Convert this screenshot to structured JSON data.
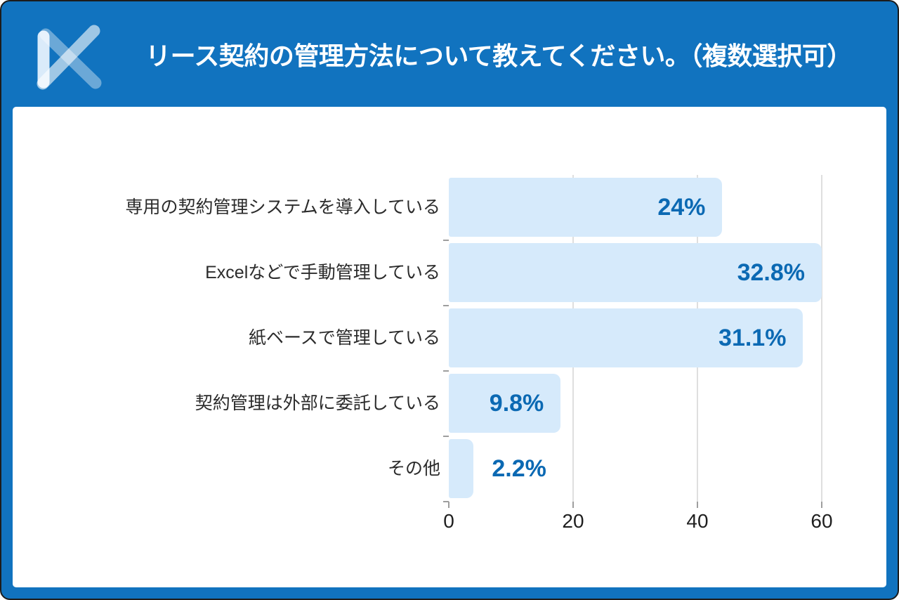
{
  "header": {
    "title": "リース契約の管理方法について教えてください。（複数選択可）",
    "logo": "brand-k-mark",
    "bg_color": "#1173BF",
    "title_color": "#FFFFFF"
  },
  "chart_data": {
    "type": "bar",
    "orientation": "horizontal",
    "title": "リース契約の管理方法について教えてください。（複数選択可）",
    "categories": [
      "専用の契約管理システムを導入している",
      "Excelなどで手動管理している",
      "紙ベースで管理している",
      "契約管理は外部に委託している",
      "その他"
    ],
    "values": [
      44,
      60,
      57,
      18,
      4
    ],
    "value_labels": [
      "24%",
      "32.8%",
      "31.1%",
      "9.8%",
      "2.2%"
    ],
    "x_ticks": [
      0,
      20,
      40,
      60
    ],
    "xlim": [
      0,
      62
    ],
    "xlabel": "",
    "ylabel": "",
    "grid": true,
    "legend": false,
    "colors": {
      "bar": "#D6EAFB",
      "value_label": "#0B69B3",
      "category_label": "#2B2B2B",
      "gridline": "#DFDFDF",
      "tick": "#9E9E9E",
      "axis_label": "#1F1F1F"
    }
  }
}
